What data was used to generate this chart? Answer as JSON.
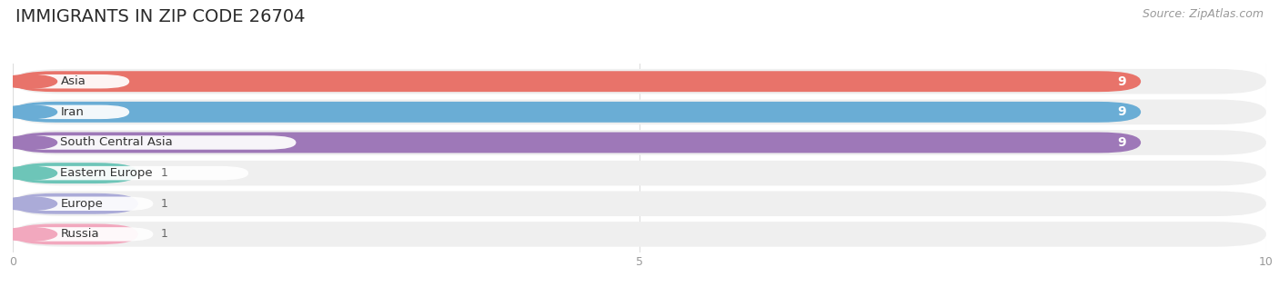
{
  "title": "IMMIGRANTS IN ZIP CODE 26704",
  "source": "Source: ZipAtlas.com",
  "categories": [
    "Asia",
    "Iran",
    "South Central Asia",
    "Eastern Europe",
    "Europe",
    "Russia"
  ],
  "values": [
    9,
    9,
    9,
    1,
    1,
    1
  ],
  "bar_colors": [
    "#E8736A",
    "#6AADD5",
    "#9E78B8",
    "#6DC5B8",
    "#ABABD8",
    "#F2A8BE"
  ],
  "xlim": [
    0,
    10
  ],
  "xticks": [
    0,
    5,
    10
  ],
  "title_fontsize": 14,
  "label_fontsize": 9.5,
  "value_fontsize": 9,
  "background_color": "#FFFFFF",
  "bar_bg_color": "#EFEFEF",
  "grid_color": "#DDDDDD"
}
